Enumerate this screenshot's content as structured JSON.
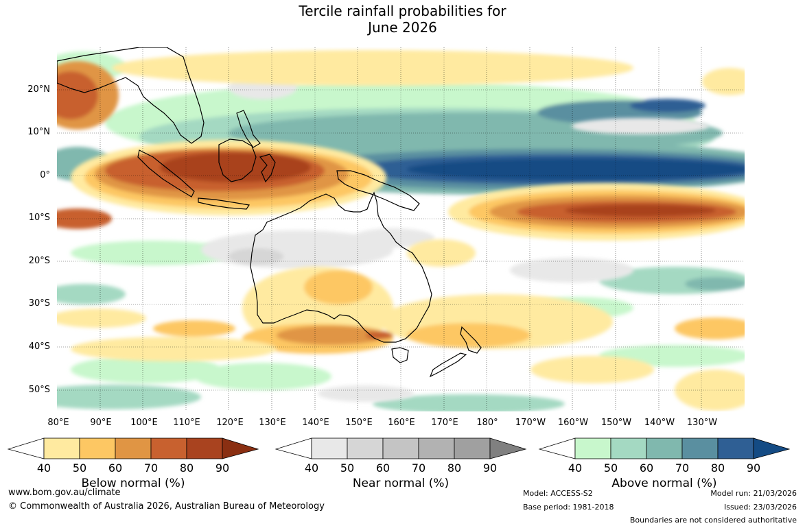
{
  "title": {
    "line1": "Tercile rainfall probabilities for",
    "line2": "June 2026"
  },
  "map": {
    "latitude_labels": [
      "20°N",
      "10°N",
      "0°",
      "10°S",
      "20°S",
      "30°S",
      "40°S",
      "50°S"
    ],
    "longitude_labels": [
      "80°E",
      "90°E",
      "100°E",
      "110°E",
      "120°E",
      "130°E",
      "140°E",
      "150°E",
      "160°E",
      "170°E",
      "180°",
      "170°W",
      "160°W",
      "150°W",
      "140°W",
      "130°W"
    ],
    "lat_range": [
      -55,
      30
    ],
    "lon_range": [
      80,
      240
    ]
  },
  "legends": {
    "below": {
      "title": "Below normal (%)",
      "ticks": [
        "40",
        "50",
        "60",
        "70",
        "80",
        "90"
      ],
      "colors": [
        "#ffffff",
        "#ffeaa0",
        "#fdc763",
        "#e09544",
        "#c8612f",
        "#a9431f",
        "#8a2f12"
      ]
    },
    "near": {
      "title": "Near normal (%)",
      "ticks": [
        "40",
        "50",
        "60",
        "70",
        "80",
        "90"
      ],
      "colors": [
        "#ffffff",
        "#e8e8e8",
        "#d6d6d6",
        "#c4c4c4",
        "#b2b2b2",
        "#a0a0a0",
        "#808080"
      ]
    },
    "above": {
      "title": "Above normal (%)",
      "ticks": [
        "40",
        "50",
        "60",
        "70",
        "80",
        "90"
      ],
      "colors": [
        "#ffffff",
        "#c8f7cc",
        "#a4d9c2",
        "#80b8ae",
        "#5a8fa0",
        "#2f5f94",
        "#144b84"
      ]
    }
  },
  "footer": {
    "website": "www.bom.gov.au/climate",
    "copyright": "© Commonwealth of Australia 2026, Australian Bureau of Meteorology",
    "model": "Model: ACCESS-S2",
    "base_period": "Base period: 1981-2018",
    "model_run": "Model run: 21/03/2026",
    "issued": "Issued: 23/03/2026",
    "disclaimer": "Boundaries are not considered authoritative"
  }
}
